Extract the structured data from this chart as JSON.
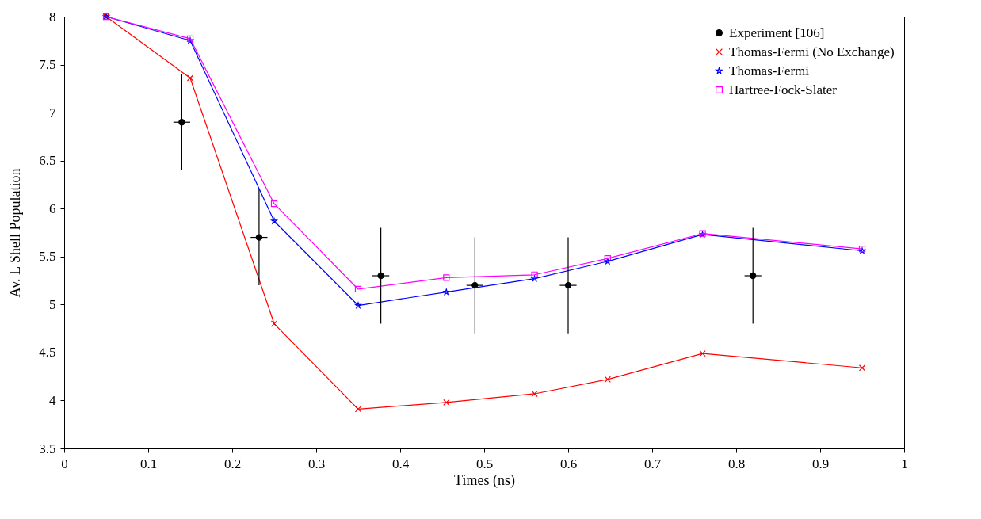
{
  "chart_data": {
    "type": "line",
    "xlabel": "Times (ns)",
    "ylabel": "Av. L Shell Population",
    "xlim": [
      0,
      1
    ],
    "xticks": [
      0,
      0.1,
      0.2,
      0.3,
      0.4,
      0.5,
      0.6,
      0.7,
      0.8,
      0.9,
      1
    ],
    "ylim": [
      3.5,
      8
    ],
    "yticks": [
      3.5,
      4,
      4.5,
      5,
      5.5,
      6,
      6.5,
      7,
      7.5,
      8
    ],
    "legend": "top right",
    "grid": false,
    "series": [
      {
        "name": "Experiment [106]",
        "type": "scatter",
        "marker": "circle",
        "color": "#000000",
        "x": [
          0.14,
          0.232,
          0.377,
          0.489,
          0.6,
          0.82
        ],
        "values": [
          6.9,
          5.7,
          5.3,
          5.2,
          5.2,
          5.3
        ],
        "errors": [
          0.5,
          0.5,
          0.5,
          0.5,
          0.5,
          0.5
        ],
        "xerrors": [
          0.01,
          0.01,
          0.01,
          0.01,
          0.01,
          0.01
        ]
      },
      {
        "name": "Thomas-Fermi (No Exchange)",
        "marker": "cross",
        "color": "#ff0000",
        "x": [
          0.05,
          0.15,
          0.25,
          0.35,
          0.455,
          0.56,
          0.647,
          0.76,
          0.95
        ],
        "values": [
          8,
          7.36,
          4.8,
          3.91,
          3.98,
          4.07,
          4.22,
          4.49,
          4.34
        ]
      },
      {
        "name": "Thomas-Fermi",
        "marker": "star",
        "color": "#0000ff",
        "x": [
          0.05,
          0.15,
          0.25,
          0.35,
          0.455,
          0.56,
          0.647,
          0.76,
          0.95
        ],
        "values": [
          8,
          7.75,
          5.87,
          4.99,
          5.13,
          5.27,
          5.45,
          5.73,
          5.56
        ]
      },
      {
        "name": "Hartree-Fock-Slater",
        "marker": "square",
        "color": "#ff00ff",
        "x": [
          0.05,
          0.15,
          0.25,
          0.35,
          0.455,
          0.56,
          0.647,
          0.76,
          0.95
        ],
        "values": [
          8,
          7.77,
          6.05,
          5.16,
          5.28,
          5.31,
          5.48,
          5.74,
          5.58
        ]
      }
    ]
  }
}
